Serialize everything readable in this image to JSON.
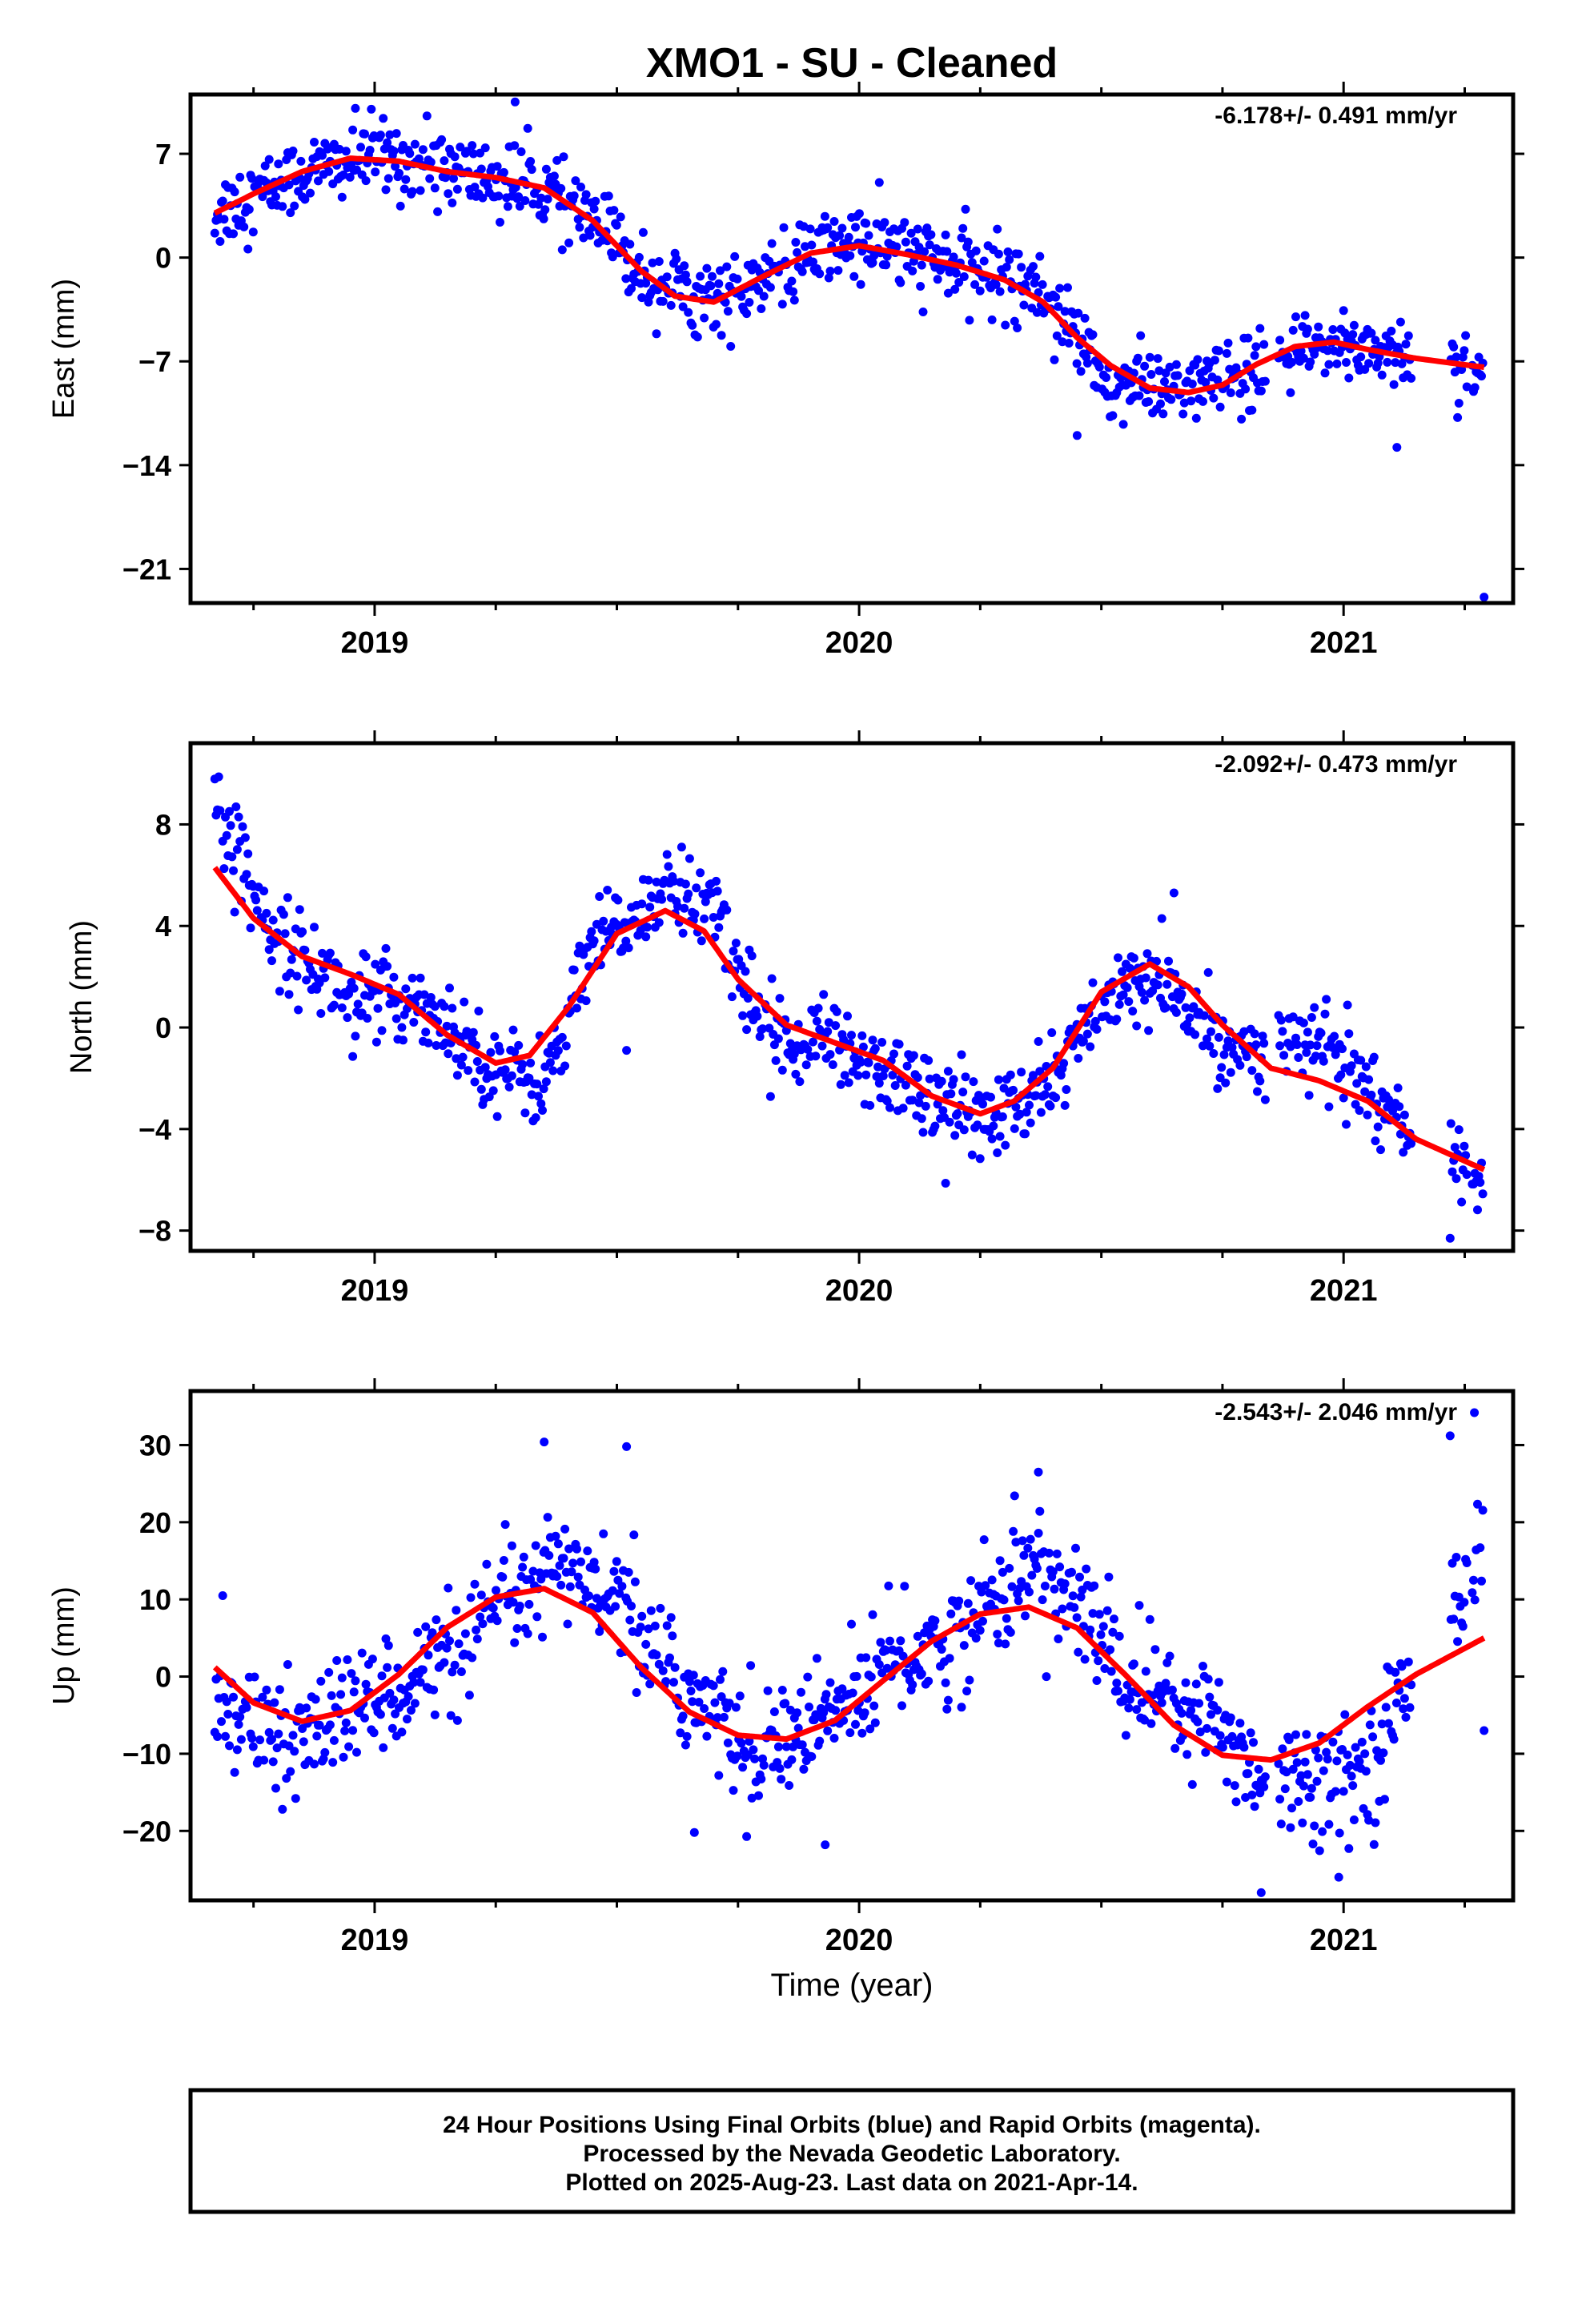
{
  "title": "XMO1  - SU - Cleaned",
  "colors": {
    "final_orbits": "#0000ff",
    "model_fit": "#ff0000",
    "frame": "#000000"
  },
  "footer": {
    "line1": "24 Hour Positions Using Final Orbits (blue) and Rapid Orbits (magenta).",
    "line2": "Processed by the Nevada Geodetic Laboratory.",
    "line3": "Plotted on 2025-Aug-23. Last data on 2021-Apr-14."
  },
  "xlabel": "Time (year)",
  "chart_data": [
    {
      "type": "scatter",
      "component": "east",
      "ylabel": "East (mm)",
      "rate_text": "-6.178+/- 0.491 mm/yr",
      "xlim": [
        2018.62,
        2021.35
      ],
      "ylim": [
        -23.3,
        11.0
      ],
      "xticks": [
        2019,
        2020,
        2021
      ],
      "yticks": [
        7,
        0,
        -7,
        -14,
        -21
      ],
      "fit_curve": {
        "x": [
          2018.67,
          2018.75,
          2018.85,
          2018.95,
          2019.05,
          2019.15,
          2019.25,
          2019.35,
          2019.45,
          2019.55,
          2019.62,
          2019.7,
          2019.8,
          2019.9,
          2020.0,
          2020.1,
          2020.2,
          2020.3,
          2020.38,
          2020.45,
          2020.52,
          2020.6,
          2020.68,
          2020.75,
          2020.82,
          2020.9,
          2020.98,
          2021.05,
          2021.15,
          2021.29
        ],
        "y": [
          3.0,
          4.3,
          5.8,
          6.7,
          6.5,
          5.8,
          5.4,
          4.7,
          2.5,
          -0.9,
          -2.6,
          -3.0,
          -1.3,
          0.3,
          0.8,
          0.2,
          -0.5,
          -1.5,
          -3.0,
          -5.4,
          -7.3,
          -8.8,
          -9.1,
          -8.6,
          -7.2,
          -6.0,
          -5.7,
          -6.2,
          -6.8,
          -7.4
        ]
      },
      "scatter_trend": {
        "x": [
          2018.67,
          2018.85,
          2019.0,
          2019.2,
          2019.35,
          2019.45,
          2019.55,
          2019.65,
          2019.75,
          2019.85,
          2019.95,
          2020.05,
          2020.2,
          2020.35,
          2020.43,
          2020.5,
          2020.6,
          2020.72,
          2020.8,
          2020.9,
          2021.0,
          2021.1,
          2021.29
        ],
        "y": [
          3.0,
          5.6,
          7.0,
          5.6,
          4.6,
          2.6,
          -0.9,
          -2.4,
          -2.6,
          -0.8,
          0.9,
          0.8,
          -0.6,
          -1.6,
          -4.0,
          -8.4,
          -8.8,
          -8.6,
          -8.1,
          -6.5,
          -5.8,
          -6.3,
          -7.4
        ]
      },
      "scatter_sigma": 1.3,
      "data_gaps": [
        [
          2020.84,
          2020.865
        ],
        [
          2021.14,
          2021.22
        ],
        [
          2021.255,
          2021.265
        ]
      ],
      "outliers": [
        {
          "x": 2019.29,
          "y": 10.5
        },
        {
          "x": 2020.45,
          "y": -12.0
        },
        {
          "x": 2021.11,
          "y": -12.8
        },
        {
          "x": 2021.29,
          "y": -22.9
        }
      ]
    },
    {
      "type": "scatter",
      "component": "north",
      "ylabel": "North (mm)",
      "rate_text": "-2.092+/- 0.473 mm/yr",
      "xlim": [
        2018.62,
        2021.35
      ],
      "ylim": [
        -8.8,
        11.2
      ],
      "xticks": [
        2019,
        2020,
        2021
      ],
      "yticks": [
        8,
        4,
        0,
        -4,
        -8
      ],
      "fit_curve": {
        "x": [
          2018.67,
          2018.75,
          2018.85,
          2018.95,
          2019.05,
          2019.15,
          2019.25,
          2019.32,
          2019.4,
          2019.5,
          2019.6,
          2019.68,
          2019.75,
          2019.85,
          2019.95,
          2020.05,
          2020.15,
          2020.25,
          2020.32,
          2020.4,
          2020.5,
          2020.6,
          2020.68,
          2020.75,
          2020.85,
          2020.95,
          2021.05,
          2021.15,
          2021.29
        ],
        "y": [
          6.3,
          4.3,
          2.8,
          2.1,
          1.3,
          -0.3,
          -1.4,
          -1.1,
          0.8,
          3.7,
          4.6,
          3.8,
          1.9,
          0.1,
          -0.6,
          -1.3,
          -2.7,
          -3.4,
          -2.9,
          -1.6,
          1.4,
          2.5,
          1.6,
          0.1,
          -1.6,
          -2.1,
          -2.9,
          -4.4,
          -5.6
        ]
      },
      "scatter_trend": {
        "x": [
          2018.67,
          2018.8,
          2018.95,
          2019.1,
          2019.25,
          2019.35,
          2019.45,
          2019.6,
          2019.7,
          2019.8,
          2019.95,
          2020.1,
          2020.25,
          2020.35,
          2020.45,
          2020.55,
          2020.65,
          2020.75,
          2020.85,
          2020.95,
          2021.05,
          2021.15,
          2021.29
        ],
        "y": [
          8.6,
          3.6,
          1.2,
          1.0,
          -1.6,
          -2.2,
          3.0,
          5.4,
          4.9,
          -0.1,
          -0.7,
          -2.1,
          -3.7,
          -3.1,
          -0.6,
          1.9,
          1.3,
          -0.6,
          -0.8,
          -0.6,
          -2.3,
          -4.6,
          -6.2
        ]
      },
      "scatter_sigma": 0.85,
      "data_gaps": [
        [
          2020.84,
          2020.865
        ],
        [
          2021.14,
          2021.22
        ],
        [
          2021.255,
          2021.265
        ]
      ],
      "outliers": [
        {
          "x": 2019.52,
          "y": -0.9
        },
        {
          "x": 2020.65,
          "y": 5.3
        },
        {
          "x": 2021.22,
          "y": -8.3
        }
      ]
    },
    {
      "type": "scatter",
      "component": "up",
      "ylabel": "Up (mm)",
      "rate_text": "-2.543+/- 2.046 mm/yr",
      "xlim": [
        2018.62,
        2021.35
      ],
      "ylim": [
        -29,
        37
      ],
      "xticks": [
        2019,
        2020,
        2021
      ],
      "yticks": [
        30,
        20,
        10,
        0,
        -10,
        -20
      ],
      "fit_curve": {
        "x": [
          2018.67,
          2018.75,
          2018.85,
          2018.95,
          2019.05,
          2019.15,
          2019.25,
          2019.35,
          2019.45,
          2019.55,
          2019.65,
          2019.75,
          2019.85,
          2019.95,
          2020.05,
          2020.15,
          2020.25,
          2020.35,
          2020.45,
          2020.55,
          2020.65,
          2020.75,
          2020.85,
          2020.95,
          2021.05,
          2021.15,
          2021.29
        ],
        "y": [
          1.2,
          -3.4,
          -5.8,
          -4.4,
          0.3,
          6.4,
          10.3,
          11.4,
          8.3,
          1.2,
          -4.6,
          -7.6,
          -8.1,
          -5.7,
          -0.5,
          4.6,
          8.1,
          9.0,
          6.3,
          0.2,
          -6.3,
          -10.2,
          -10.8,
          -8.6,
          -3.9,
          0.3,
          5.0
        ]
      },
      "scatter_trend": {
        "x": [
          2018.67,
          2018.8,
          2018.95,
          2019.1,
          2019.25,
          2019.4,
          2019.5,
          2019.6,
          2019.75,
          2019.9,
          2020.05,
          2020.2,
          2020.35,
          2020.45,
          2020.55,
          2020.7,
          2020.85,
          2020.95,
          2021.05,
          2021.15,
          2021.25,
          2021.29
        ],
        "y": [
          -1.5,
          -9.0,
          -4.5,
          0.4,
          8.0,
          14.5,
          9.5,
          0.8,
          -8.2,
          -7.5,
          1.0,
          5.0,
          14.5,
          10.0,
          -0.5,
          -4.0,
          -13.5,
          -12.5,
          -12.0,
          1.0,
          13.0,
          18.0
        ]
      },
      "scatter_sigma": 3.8,
      "data_gaps": [
        [
          2020.84,
          2020.865
        ],
        [
          2021.14,
          2021.22
        ],
        [
          2021.255,
          2021.265
        ]
      ],
      "outliers": [
        {
          "x": 2019.35,
          "y": 30.4
        },
        {
          "x": 2019.52,
          "y": 29.8
        },
        {
          "x": 2019.93,
          "y": -21.8
        },
        {
          "x": 2020.37,
          "y": 26.5
        },
        {
          "x": 2021.22,
          "y": 31.2
        },
        {
          "x": 2021.27,
          "y": 34.2
        },
        {
          "x": 2021.29,
          "y": -7.0
        },
        {
          "x": 2020.83,
          "y": -28.0
        },
        {
          "x": 2020.99,
          "y": -26.0
        },
        {
          "x": 2019.66,
          "y": -20.2
        }
      ]
    }
  ]
}
